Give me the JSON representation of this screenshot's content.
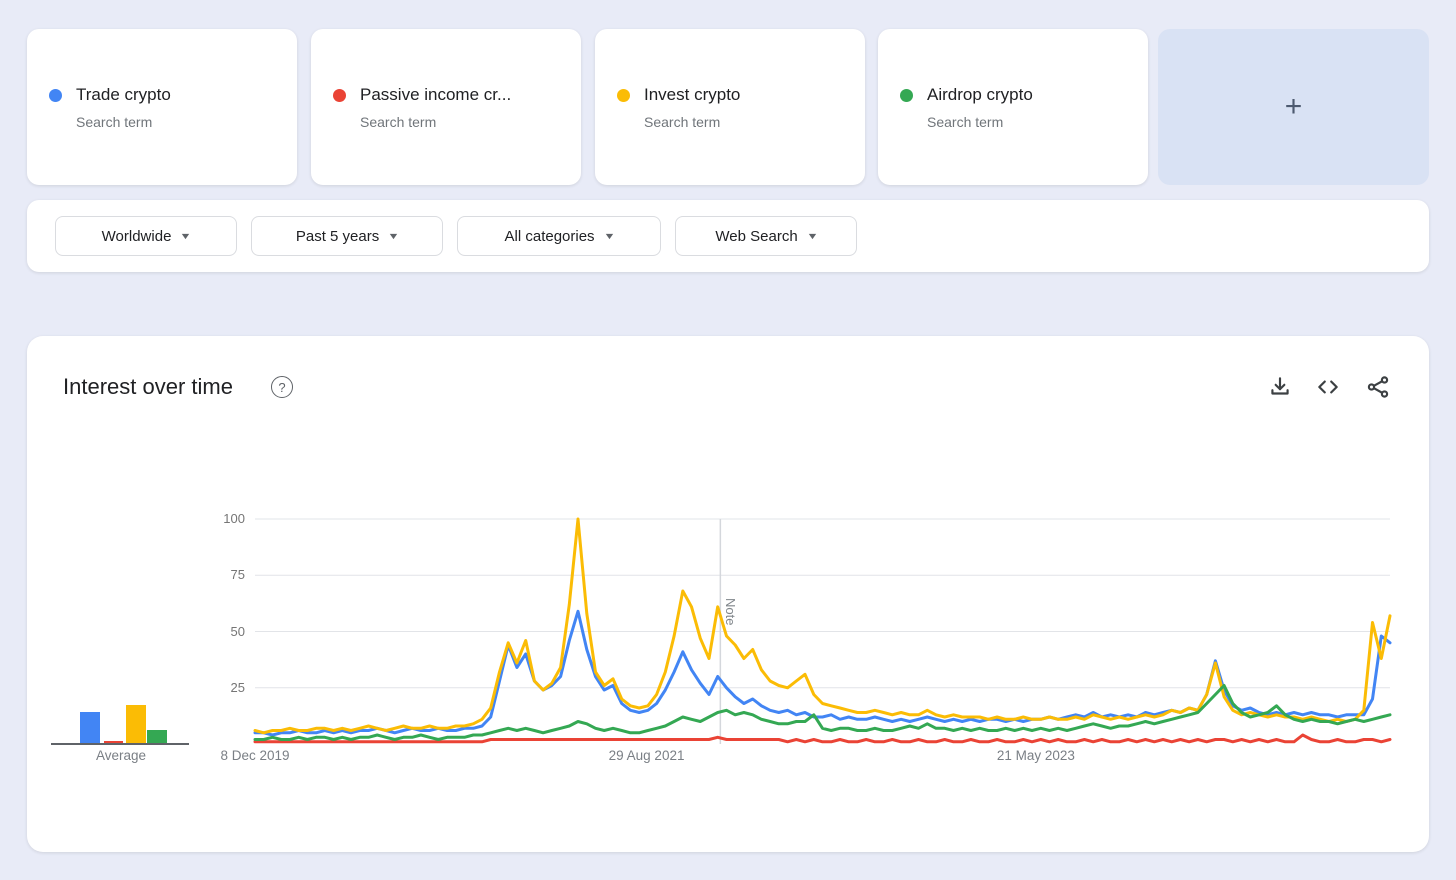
{
  "term_cards": [
    {
      "label": "Trade crypto",
      "sublabel": "Search term",
      "color": "#4285F4"
    },
    {
      "label": "Passive income cr...",
      "sublabel": "Search term",
      "color": "#EA4335"
    },
    {
      "label": "Invest crypto",
      "sublabel": "Search term",
      "color": "#FBBC05"
    },
    {
      "label": "Airdrop crypto",
      "sublabel": "Search term",
      "color": "#34A853"
    }
  ],
  "add_card": {
    "plus": "+"
  },
  "filters": {
    "region": "Worldwide",
    "time": "Past 5 years",
    "category": "All categories",
    "search_type": "Web Search"
  },
  "panel": {
    "title": "Interest over time",
    "help": "?",
    "actions": [
      "download",
      "embed",
      "share"
    ]
  },
  "chart_data": {
    "type": "line",
    "title": "Interest over time",
    "ylim": [
      0,
      100
    ],
    "yticks": [
      25,
      50,
      75,
      100
    ],
    "grid": true,
    "xticks": [
      {
        "label": "8 Dec 2019",
        "position": 0.0
      },
      {
        "label": "29 Aug 2021",
        "position": 0.345
      },
      {
        "label": "21 May 2023",
        "position": 0.688
      }
    ],
    "note": {
      "label": "Note",
      "position": 0.41
    },
    "average_label": "Average",
    "series": [
      {
        "name": "Trade crypto",
        "color": "#4285F4",
        "average": 14,
        "values": [
          5,
          5,
          4,
          5,
          5,
          6,
          5,
          5,
          6,
          5,
          6,
          5,
          6,
          6,
          7,
          6,
          5,
          6,
          7,
          6,
          6,
          7,
          6,
          6,
          7,
          7,
          8,
          12,
          28,
          44,
          34,
          40,
          28,
          24,
          26,
          30,
          46,
          59,
          42,
          30,
          24,
          26,
          18,
          15,
          14,
          15,
          18,
          24,
          32,
          41,
          33,
          27,
          22,
          30,
          25,
          21,
          18,
          20,
          17,
          15,
          14,
          15,
          13,
          14,
          12,
          12,
          13,
          11,
          12,
          11,
          11,
          12,
          11,
          10,
          11,
          10,
          11,
          12,
          11,
          10,
          11,
          10,
          11,
          10,
          11,
          11,
          10,
          11,
          10,
          11,
          11,
          12,
          11,
          12,
          13,
          12,
          14,
          12,
          13,
          12,
          13,
          12,
          14,
          13,
          14,
          15,
          14,
          16,
          15,
          22,
          37,
          24,
          17,
          15,
          16,
          14,
          13,
          14,
          13,
          14,
          13,
          14,
          13,
          13,
          12,
          13,
          13,
          13,
          20,
          48,
          45
        ]
      },
      {
        "name": "Passive income crypto",
        "color": "#EA4335",
        "average": 1,
        "values": [
          1,
          1,
          1,
          1,
          1,
          1,
          1,
          1,
          1,
          1,
          1,
          1,
          1,
          1,
          1,
          1,
          1,
          1,
          1,
          1,
          1,
          1,
          1,
          1,
          1,
          1,
          1,
          2,
          2,
          2,
          2,
          2,
          2,
          2,
          2,
          2,
          2,
          2,
          2,
          2,
          2,
          2,
          2,
          2,
          2,
          2,
          2,
          2,
          2,
          2,
          2,
          2,
          2,
          3,
          2,
          2,
          2,
          2,
          2,
          2,
          2,
          1,
          2,
          1,
          2,
          1,
          1,
          2,
          1,
          1,
          2,
          1,
          1,
          2,
          1,
          1,
          2,
          1,
          1,
          2,
          1,
          1,
          2,
          1,
          1,
          2,
          1,
          1,
          2,
          1,
          2,
          1,
          2,
          1,
          1,
          2,
          1,
          2,
          1,
          1,
          2,
          1,
          2,
          1,
          2,
          1,
          2,
          1,
          2,
          1,
          2,
          2,
          1,
          2,
          1,
          2,
          1,
          2,
          1,
          1,
          4,
          2,
          1,
          1,
          2,
          1,
          1,
          2,
          2,
          1,
          2
        ]
      },
      {
        "name": "Invest crypto",
        "color": "#FBBC05",
        "average": 17,
        "values": [
          6,
          5,
          6,
          6,
          7,
          6,
          6,
          7,
          7,
          6,
          7,
          6,
          7,
          8,
          7,
          6,
          7,
          8,
          7,
          7,
          8,
          7,
          7,
          8,
          8,
          9,
          11,
          16,
          32,
          45,
          36,
          46,
          28,
          24,
          27,
          34,
          62,
          100,
          58,
          32,
          26,
          29,
          20,
          17,
          16,
          17,
          22,
          32,
          48,
          68,
          61,
          47,
          38,
          61,
          48,
          44,
          38,
          42,
          33,
          28,
          26,
          25,
          28,
          31,
          22,
          18,
          17,
          16,
          15,
          14,
          14,
          15,
          14,
          13,
          14,
          13,
          13,
          15,
          13,
          12,
          13,
          12,
          12,
          12,
          11,
          12,
          11,
          11,
          12,
          11,
          11,
          12,
          11,
          11,
          12,
          11,
          13,
          12,
          11,
          12,
          11,
          12,
          13,
          12,
          13,
          15,
          14,
          16,
          15,
          22,
          36,
          21,
          15,
          13,
          14,
          13,
          12,
          13,
          12,
          12,
          11,
          12,
          11,
          10,
          11,
          10,
          11,
          15,
          54,
          38,
          57
        ]
      },
      {
        "name": "Airdrop crypto",
        "color": "#34A853",
        "average": 6,
        "values": [
          2,
          2,
          3,
          2,
          2,
          3,
          2,
          3,
          3,
          2,
          3,
          2,
          3,
          3,
          4,
          3,
          2,
          3,
          3,
          4,
          3,
          2,
          3,
          3,
          3,
          4,
          4,
          5,
          6,
          7,
          6,
          7,
          6,
          5,
          6,
          7,
          8,
          10,
          9,
          7,
          6,
          7,
          6,
          5,
          5,
          6,
          7,
          8,
          10,
          12,
          11,
          10,
          12,
          14,
          15,
          13,
          14,
          13,
          11,
          10,
          9,
          9,
          10,
          10,
          13,
          7,
          6,
          7,
          7,
          6,
          6,
          7,
          6,
          6,
          7,
          8,
          7,
          9,
          7,
          7,
          6,
          7,
          6,
          7,
          6,
          6,
          7,
          6,
          7,
          6,
          7,
          6,
          7,
          6,
          7,
          8,
          9,
          8,
          7,
          8,
          8,
          9,
          10,
          9,
          10,
          11,
          12,
          13,
          14,
          18,
          22,
          26,
          18,
          14,
          12,
          13,
          14,
          17,
          13,
          11,
          10,
          11,
          10,
          10,
          9,
          10,
          11,
          10,
          11,
          12,
          13
        ]
      }
    ]
  }
}
